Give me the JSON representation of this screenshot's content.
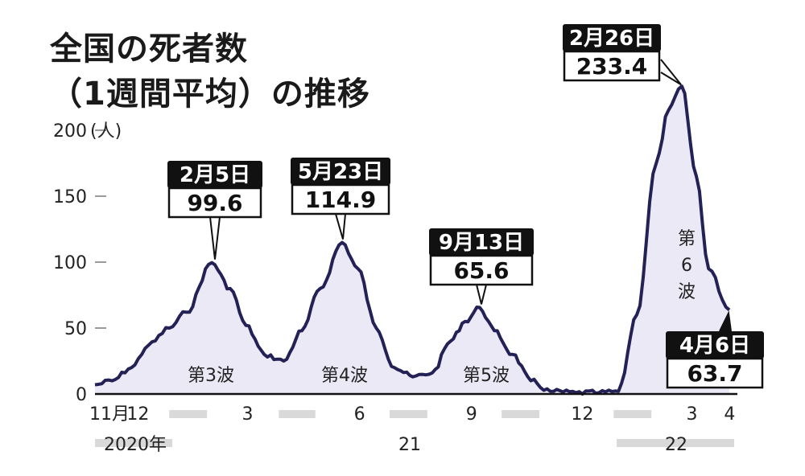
{
  "title_line1": "全国の死者数",
  "title_line2": "（1週間平均）の推移",
  "colors": {
    "line": "#232155",
    "fill": "#ece9f7",
    "callout_head": "#111111",
    "grid": "#9a9a9a"
  },
  "chart_data": {
    "type": "area",
    "unit_label": "(人)",
    "ylim": [
      0,
      200
    ],
    "y_ticks": [
      0,
      50,
      100,
      150,
      200
    ],
    "grid": false,
    "x_tick_labels": [
      "11月",
      "12",
      "3",
      "6",
      "9",
      "12",
      "3",
      "4"
    ],
    "year_labels": [
      "2020年",
      "21",
      "22"
    ],
    "x": [
      "2020-11-01",
      "2020-11-15",
      "2020-12-01",
      "2020-12-15",
      "2021-01-01",
      "2021-01-15",
      "2021-02-05",
      "2021-02-20",
      "2021-03-05",
      "2021-03-20",
      "2021-04-05",
      "2021-04-20",
      "2021-05-05",
      "2021-05-23",
      "2021-06-05",
      "2021-06-20",
      "2021-07-05",
      "2021-07-20",
      "2021-08-05",
      "2021-08-20",
      "2021-09-01",
      "2021-09-13",
      "2021-09-25",
      "2021-10-10",
      "2021-10-25",
      "2021-11-10",
      "2021-12-01",
      "2021-12-20",
      "2022-01-05",
      "2022-01-20",
      "2022-02-05",
      "2022-02-15",
      "2022-02-26",
      "2022-03-10",
      "2022-03-20",
      "2022-04-06"
    ],
    "values": [
      7,
      10,
      20,
      37,
      50,
      62,
      99.6,
      80,
      52,
      30,
      25,
      48,
      80,
      114.9,
      95,
      50,
      20,
      13,
      16,
      40,
      55,
      65.6,
      48,
      30,
      10,
      2,
      1,
      1,
      2,
      60,
      175,
      215,
      233.4,
      165,
      95,
      63.7
    ],
    "annotations": [
      {
        "date_label": "2月5日",
        "value": "99.6",
        "x": "2021-02-05",
        "y": 99.6
      },
      {
        "date_label": "5月23日",
        "value": "114.9",
        "x": "2021-05-23",
        "y": 114.9
      },
      {
        "date_label": "9月13日",
        "value": "65.6",
        "x": "2021-09-13",
        "y": 65.6
      },
      {
        "date_label": "2月26日",
        "value": "233.4",
        "x": "2022-02-26",
        "y": 233.4
      },
      {
        "date_label": "4月6日",
        "value": "63.7",
        "x": "2022-04-06",
        "y": 63.7
      }
    ],
    "wave_labels": [
      "第3波",
      "第4波",
      "第5波",
      "第",
      "6",
      "波"
    ]
  }
}
